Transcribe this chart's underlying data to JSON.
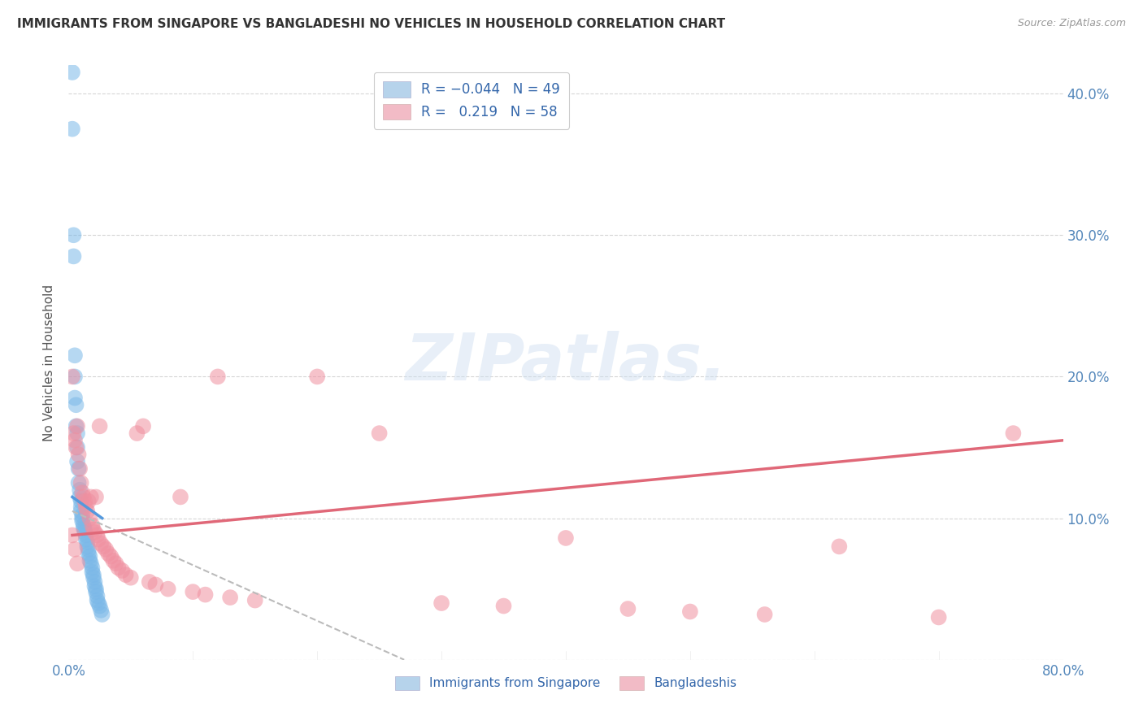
{
  "title": "IMMIGRANTS FROM SINGAPORE VS BANGLADESHI NO VEHICLES IN HOUSEHOLD CORRELATION CHART",
  "source": "Source: ZipAtlas.com",
  "ylabel": "No Vehicles in Household",
  "xlim": [
    0.0,
    0.8
  ],
  "ylim": [
    0.0,
    0.42
  ],
  "singapore_color": "#7ab8e8",
  "bangladeshi_color": "#f090a0",
  "singapore_trend_color": "#5599dd",
  "bangladeshi_trend_color": "#e06878",
  "dashed_trend_color": "#bbbbbb",
  "background_color": "#ffffff",
  "sg_legend_color": "#aacce8",
  "bd_legend_color": "#f0b0bc",
  "singapore_x": [
    0.003,
    0.003,
    0.004,
    0.004,
    0.005,
    0.005,
    0.005,
    0.006,
    0.006,
    0.007,
    0.007,
    0.007,
    0.008,
    0.008,
    0.009,
    0.009,
    0.01,
    0.01,
    0.01,
    0.011,
    0.011,
    0.011,
    0.012,
    0.012,
    0.013,
    0.013,
    0.014,
    0.014,
    0.015,
    0.015,
    0.016,
    0.016,
    0.017,
    0.017,
    0.018,
    0.019,
    0.019,
    0.02,
    0.02,
    0.021,
    0.021,
    0.022,
    0.022,
    0.023,
    0.023,
    0.024,
    0.025,
    0.026,
    0.027
  ],
  "singapore_y": [
    0.415,
    0.375,
    0.3,
    0.285,
    0.215,
    0.2,
    0.185,
    0.18,
    0.165,
    0.16,
    0.15,
    0.14,
    0.135,
    0.125,
    0.12,
    0.115,
    0.112,
    0.108,
    0.105,
    0.102,
    0.1,
    0.098,
    0.095,
    0.093,
    0.092,
    0.09,
    0.088,
    0.085,
    0.083,
    0.08,
    0.078,
    0.075,
    0.073,
    0.07,
    0.068,
    0.065,
    0.062,
    0.06,
    0.058,
    0.055,
    0.052,
    0.05,
    0.048,
    0.045,
    0.042,
    0.04,
    0.038,
    0.035,
    0.032
  ],
  "bangladeshi_x": [
    0.003,
    0.004,
    0.005,
    0.006,
    0.007,
    0.008,
    0.009,
    0.01,
    0.011,
    0.012,
    0.013,
    0.014,
    0.015,
    0.016,
    0.017,
    0.018,
    0.019,
    0.02,
    0.021,
    0.022,
    0.023,
    0.024,
    0.025,
    0.026,
    0.028,
    0.03,
    0.032,
    0.034,
    0.036,
    0.038,
    0.04,
    0.043,
    0.046,
    0.05,
    0.055,
    0.06,
    0.065,
    0.07,
    0.08,
    0.09,
    0.1,
    0.11,
    0.12,
    0.13,
    0.15,
    0.2,
    0.25,
    0.3,
    0.35,
    0.4,
    0.45,
    0.5,
    0.56,
    0.62,
    0.7,
    0.76,
    0.003,
    0.005,
    0.007
  ],
  "bangladeshi_y": [
    0.2,
    0.16,
    0.155,
    0.15,
    0.165,
    0.145,
    0.135,
    0.125,
    0.118,
    0.115,
    0.112,
    0.108,
    0.105,
    0.112,
    0.1,
    0.115,
    0.095,
    0.092,
    0.09,
    0.115,
    0.088,
    0.085,
    0.165,
    0.082,
    0.08,
    0.078,
    0.075,
    0.073,
    0.07,
    0.068,
    0.065,
    0.063,
    0.06,
    0.058,
    0.16,
    0.165,
    0.055,
    0.053,
    0.05,
    0.115,
    0.048,
    0.046,
    0.2,
    0.044,
    0.042,
    0.2,
    0.16,
    0.04,
    0.038,
    0.086,
    0.036,
    0.034,
    0.032,
    0.08,
    0.03,
    0.16,
    0.088,
    0.078,
    0.068
  ],
  "sg_trend_x": [
    0.003,
    0.027
  ],
  "sg_trend_y_start": 0.115,
  "sg_trend_y_end": 0.1,
  "bd_trend_x": [
    0.003,
    0.8
  ],
  "bd_trend_y_start": 0.088,
  "bd_trend_y_end": 0.155,
  "dash_trend_x": [
    0.003,
    0.27
  ],
  "dash_trend_y_start": 0.105,
  "dash_trend_y_end": 0.0
}
